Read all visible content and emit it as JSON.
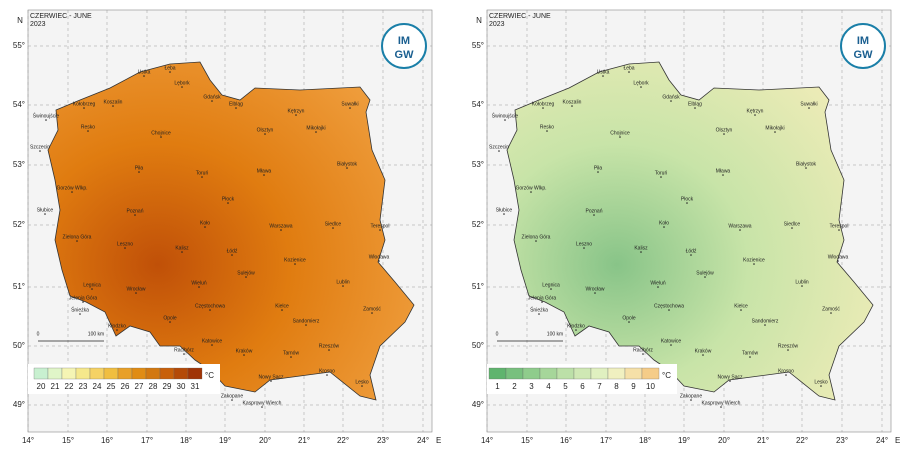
{
  "axes": {
    "north": "N",
    "east": "E",
    "lat": [
      "55°",
      "54°",
      "53°",
      "52°",
      "51°",
      "50°",
      "49°"
    ],
    "lon": [
      "14°",
      "15°",
      "16°",
      "17°",
      "18°",
      "19°",
      "20°",
      "21°",
      "22°",
      "23°",
      "24°"
    ]
  },
  "logo": [
    "IM",
    "GW"
  ],
  "scale": [
    "0",
    "100 km"
  ],
  "cities": [
    "Ustka",
    "Łeba",
    "Lębork",
    "Gdańsk",
    "Elbląg",
    "Koszalin",
    "Kołobrzeg",
    "Świnoujście",
    "Kętrzyn",
    "Suwałki",
    "Olsztyn",
    "Mikołajki",
    "Chojnice",
    "Resko",
    "Szczecin",
    "Piła",
    "Toruń",
    "Mława",
    "Białystok",
    "Gorzów Wlkp.",
    "Płock",
    "Poznań",
    "Słubice",
    "Koło",
    "Warszawa",
    "Siedlce",
    "Terespol",
    "Zielona Góra",
    "Kalisz",
    "Łódź",
    "Leszno",
    "Kozienice",
    "Włodawa",
    "Sulejów",
    "Legnica",
    "Wieluń",
    "Lublin",
    "Jelenia Góra",
    "Wrocław",
    "Śnieżka",
    "Kłodzko",
    "Częstochowa",
    "Kielce",
    "Zamość",
    "Opole",
    "Sandomierz",
    "Racibórz",
    "Katowice",
    "Kraków",
    "Tarnów",
    "Rzeszów",
    "Krosno",
    "Lesko",
    "Zakopane",
    "Nowy Sącz",
    "Kasprowy Wierch"
  ],
  "panels": [
    {
      "header": [
        "CZERWIEC - JUNE",
        "2023"
      ],
      "map_colors": [
        "#f0a040",
        "#e07c10",
        "#c05008"
      ],
      "legend": {
        "ticks": [
          20,
          21,
          22,
          23,
          24,
          25,
          26,
          27,
          28,
          29,
          30,
          31
        ],
        "unit": "°C",
        "colors": [
          "#c8f0d0",
          "#e0f5c8",
          "#f5f5b4",
          "#f5e88c",
          "#f5d264",
          "#f0be40",
          "#e8a028",
          "#e08c14",
          "#d27810",
          "#c8600a",
          "#b44a08",
          "#a03406"
        ]
      }
    },
    {
      "header": [
        "CZERWIEC - JUNE",
        "2023"
      ],
      "map_colors": [
        "#f0ecb8",
        "#c8e4a8",
        "#88c488"
      ],
      "legend": {
        "ticks": [
          1,
          2,
          3,
          4,
          5,
          6,
          7,
          8,
          9,
          10
        ],
        "unit": "°C",
        "colors": [
          "#5fb46e",
          "#78c07e",
          "#8fcc8c",
          "#a6d69a",
          "#bce0a8",
          "#cfe8b4",
          "#e0f0c0",
          "#f0f0c0",
          "#f5e0a8",
          "#f5cc88"
        ]
      }
    }
  ]
}
